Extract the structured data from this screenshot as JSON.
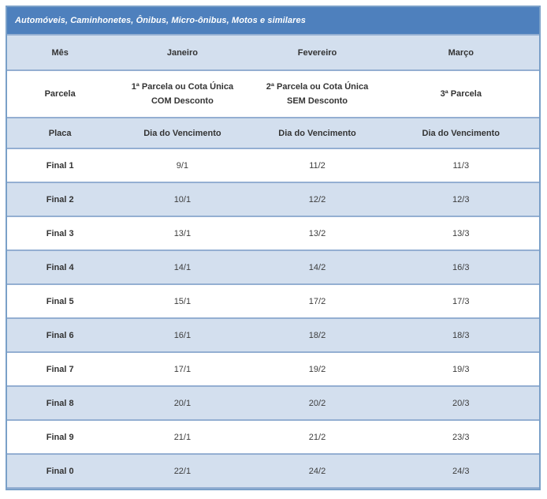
{
  "title": "Automóveis, Caminhonetes, Ônibus, Micro-ônibus, Motos e similares",
  "colors": {
    "header_bg": "#4E80BD",
    "band_bg": "#D3DFEE",
    "outer_border": "#7AA0C8",
    "band_border": "#94AFD2",
    "title_text": "#FFFFFF",
    "body_text": "#333333"
  },
  "table": {
    "month_header": [
      "Mês",
      "Janeiro",
      "Fevereiro",
      "Março"
    ],
    "parcela_header": {
      "col1": "Parcela",
      "col2_line1": "1ª Parcela ou Cota Única",
      "col2_line2": "COM Desconto",
      "col3_line1": "2ª Parcela ou Cota Única",
      "col3_line2": "SEM Desconto",
      "col4": "3ª Parcela"
    },
    "subheader": [
      "Placa",
      "Dia do Vencimento",
      "Dia do Vencimento",
      "Dia do Vencimento"
    ],
    "rows": [
      {
        "plate": "Final 1",
        "dates": [
          "9/1",
          "11/2",
          "11/3"
        ]
      },
      {
        "plate": "Final 2",
        "dates": [
          "10/1",
          "12/2",
          "12/3"
        ]
      },
      {
        "plate": "Final 3",
        "dates": [
          "13/1",
          "13/2",
          "13/3"
        ]
      },
      {
        "plate": "Final 4",
        "dates": [
          "14/1",
          "14/2",
          "16/3"
        ]
      },
      {
        "plate": "Final 5",
        "dates": [
          "15/1",
          "17/2",
          "17/3"
        ]
      },
      {
        "plate": "Final 6",
        "dates": [
          "16/1",
          "18/2",
          "18/3"
        ]
      },
      {
        "plate": "Final 7",
        "dates": [
          "17/1",
          "19/2",
          "19/3"
        ]
      },
      {
        "plate": "Final 8",
        "dates": [
          "20/1",
          "20/2",
          "20/3"
        ]
      },
      {
        "plate": "Final 9",
        "dates": [
          "21/1",
          "21/2",
          "23/3"
        ]
      },
      {
        "plate": "Final 0",
        "dates": [
          "22/1",
          "24/2",
          "24/3"
        ]
      }
    ]
  }
}
